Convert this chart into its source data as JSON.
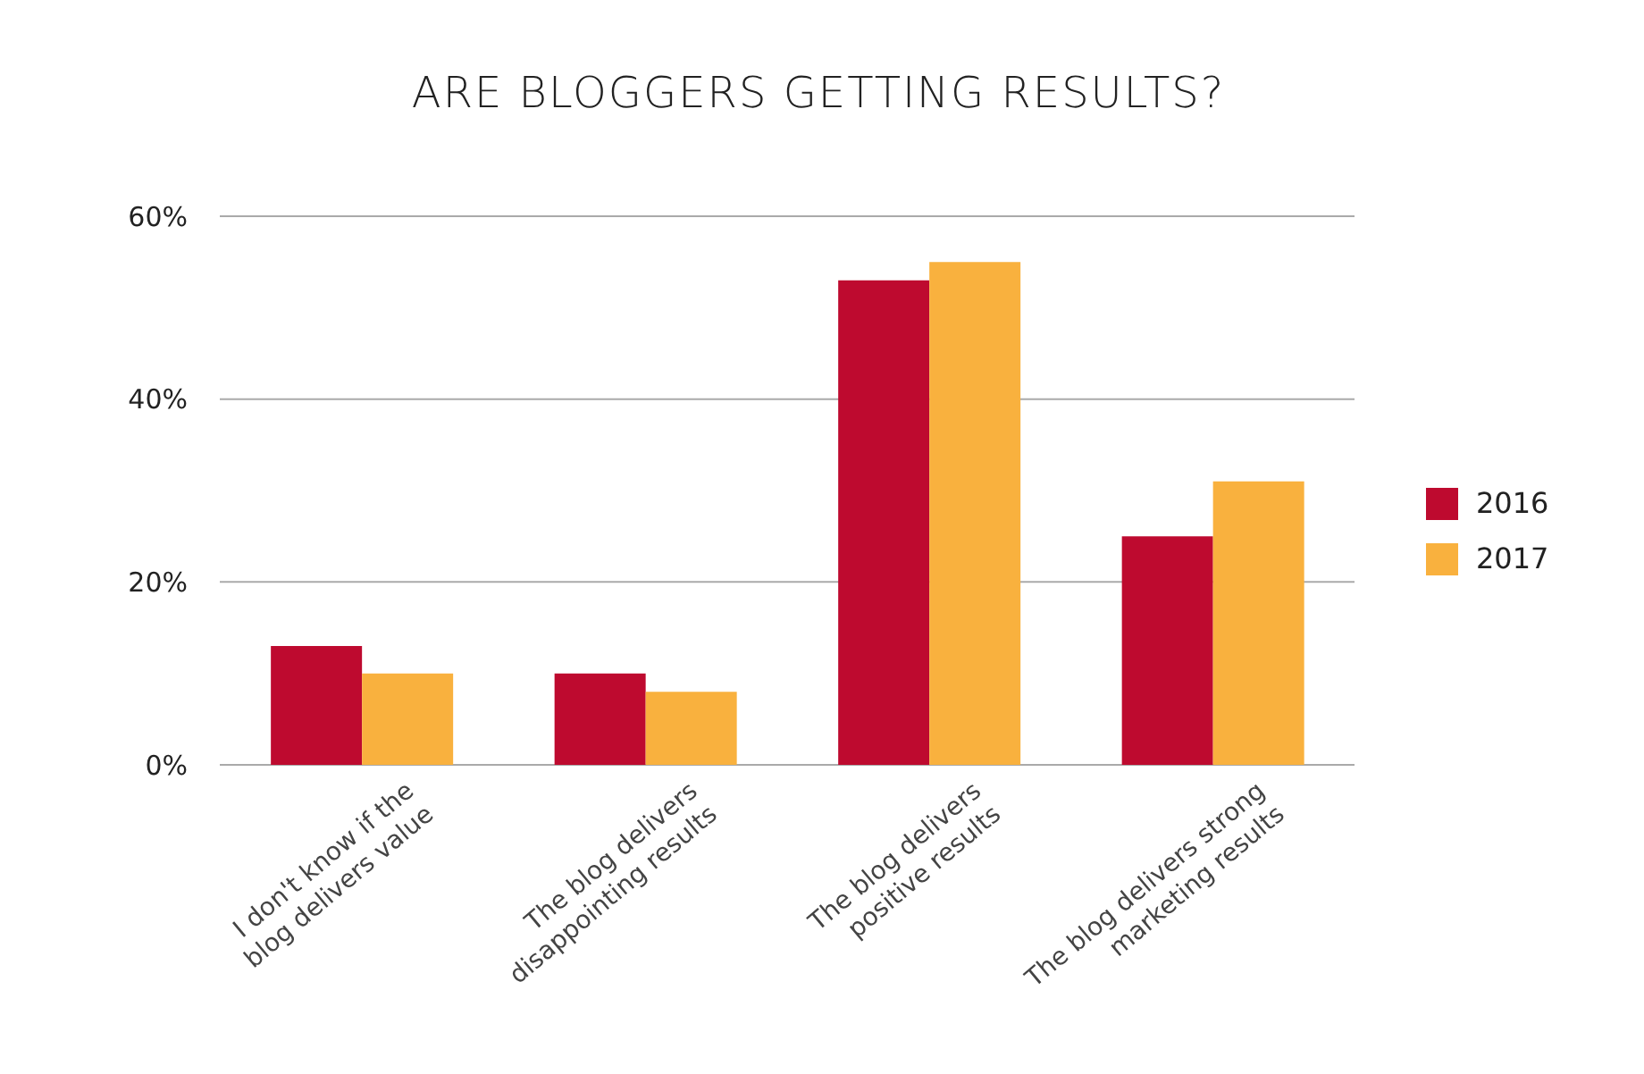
{
  "chart_data": {
    "type": "bar",
    "title": "ARE BLOGGERS GETTING RESULTS?",
    "categories": [
      "I don't know if the blog delivers value",
      "The blog delivers disappointing results",
      "The blog delivers positive results",
      "The blog delivers strong marketing results"
    ],
    "series": [
      {
        "name": "2016",
        "color": "#be0a2f",
        "values": [
          13,
          10,
          53,
          25
        ]
      },
      {
        "name": "2017",
        "color": "#f9b13e",
        "values": [
          10,
          8,
          55,
          31
        ]
      }
    ],
    "ylim": [
      0,
      60
    ],
    "yticks": [
      {
        "value": 0,
        "label": "0%"
      },
      {
        "value": 20,
        "label": "20%"
      },
      {
        "value": 40,
        "label": "40%"
      },
      {
        "value": 60,
        "label": "60%"
      }
    ],
    "grid": "y",
    "legend": "right"
  }
}
